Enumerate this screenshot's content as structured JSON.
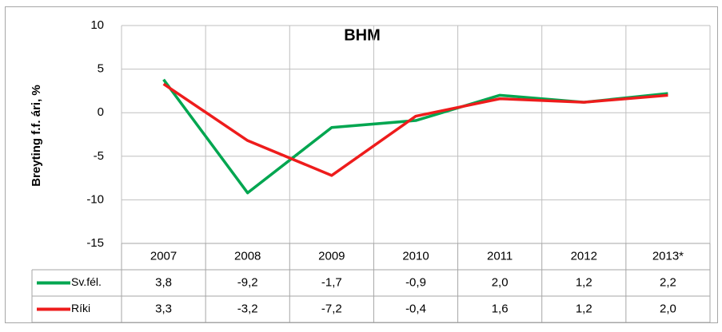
{
  "chart_data": {
    "type": "line",
    "title": "BHM",
    "y_label": "Breyting f.f. ári, %",
    "categories": [
      "2007",
      "2008",
      "2009",
      "2010",
      "2011",
      "2012",
      "2013*"
    ],
    "series": [
      {
        "name": "Sv.fél.",
        "color": "#00a650",
        "values": [
          3.8,
          -9.2,
          -1.7,
          -0.9,
          2.0,
          1.2,
          2.2
        ],
        "value_labels": [
          "3,8",
          "-9,2",
          "-1,7",
          "-0,9",
          "2,0",
          "1,2",
          "2,2"
        ]
      },
      {
        "name": "Ríki",
        "color": "#ee1c1c",
        "values": [
          3.3,
          -3.2,
          -7.2,
          -0.4,
          1.6,
          1.2,
          2.0
        ],
        "value_labels": [
          "3,3",
          "-3,2",
          "-7,2",
          "-0,4",
          "1,6",
          "1,2",
          "2,0"
        ]
      }
    ],
    "ylim": [
      -15,
      10
    ],
    "yticks": [
      -15,
      -10,
      -5,
      0,
      5,
      10
    ],
    "grid": true
  }
}
